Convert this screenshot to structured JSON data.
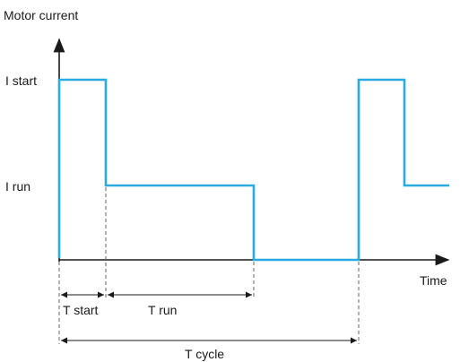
{
  "labels": {
    "y_axis_title": "Motor current",
    "x_axis_title": "Time",
    "i_start": "I start",
    "i_run": "I run",
    "t_start": "T start",
    "t_run": "T run",
    "t_cycle": "T cycle"
  },
  "colors": {
    "current_trace": "#29abe2",
    "axes": "#1a1a1a",
    "guide_lines": "#666666"
  }
}
